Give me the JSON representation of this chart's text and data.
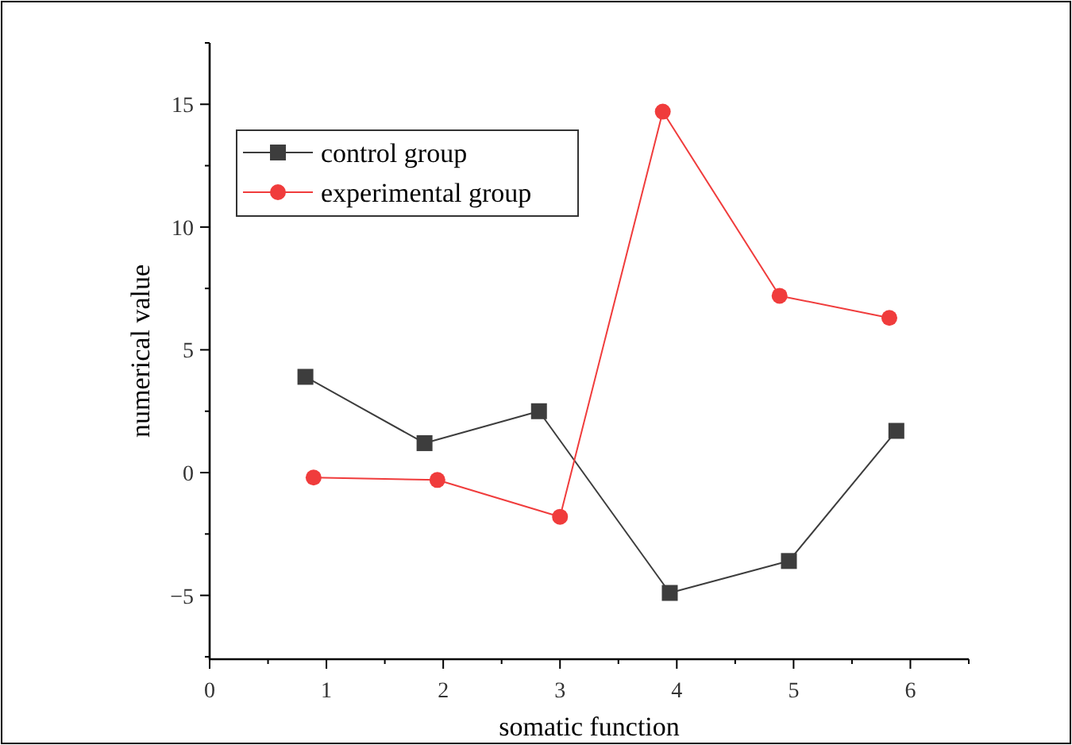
{
  "chart_data": {
    "type": "line",
    "xlabel": "somatic function",
    "ylabel": "numerical value",
    "xlim": [
      0,
      6.5
    ],
    "xticks": [
      0,
      1,
      2,
      3,
      4,
      5,
      6
    ],
    "ylim": [
      -7.6,
      17.5
    ],
    "yticks": [
      -5,
      0,
      5,
      10,
      15
    ],
    "grid": false,
    "legend": "top left",
    "series": [
      {
        "name": "control group",
        "color": "#3d3d3d",
        "marker": "square",
        "x": [
          0.82,
          1.84,
          2.82,
          3.94,
          4.96,
          5.88
        ],
        "values": [
          3.9,
          1.2,
          2.5,
          -4.9,
          -3.6,
          1.7
        ]
      },
      {
        "name": "experimental group",
        "color": "#f03c3c",
        "marker": "circle",
        "x": [
          0.89,
          1.95,
          3.0,
          3.88,
          4.88,
          5.82
        ],
        "values": [
          -0.2,
          -0.3,
          -1.8,
          14.7,
          7.2,
          6.3
        ]
      }
    ]
  }
}
